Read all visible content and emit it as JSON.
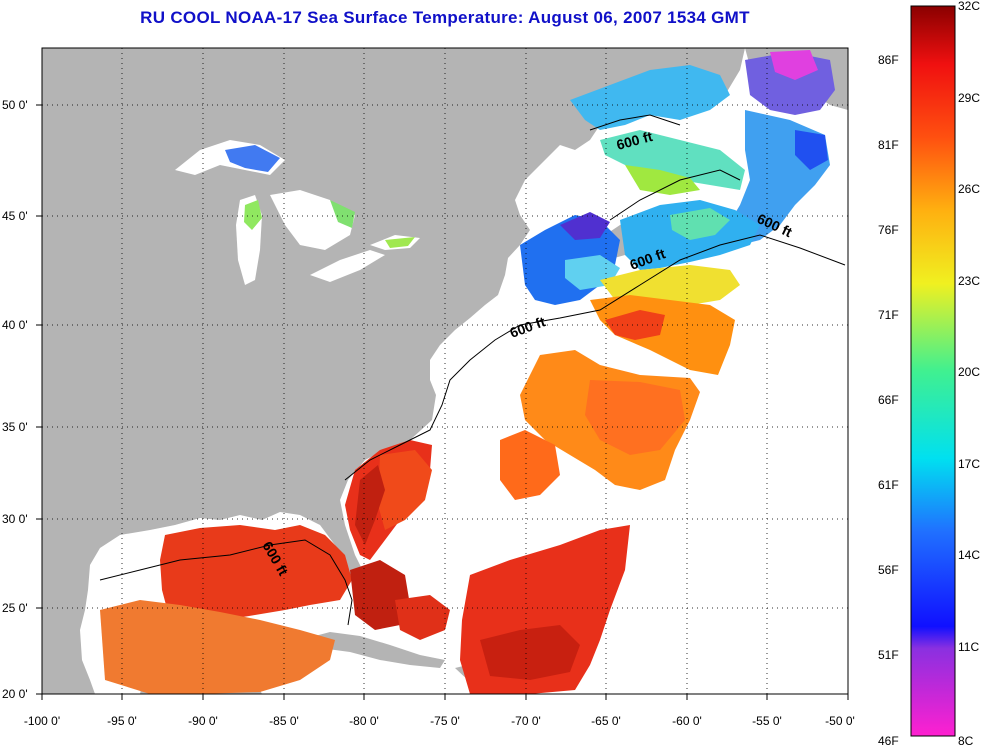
{
  "title": "RU COOL  NOAA-17  Sea Surface Temperature:  August 06, 2007 1534 GMT",
  "axes": {
    "lon_labels": [
      "-100 0'",
      "-95 0'",
      "-90 0'",
      "-85 0'",
      "-80 0'",
      "-75 0'",
      "-70 0'",
      "-65 0'",
      "-60 0'",
      "-55 0'",
      "-50 0'"
    ],
    "lat_labels": [
      "50 0'",
      "45 0'",
      "40 0'",
      "35 0'",
      "30 0'",
      "25 0'",
      "20 0'"
    ]
  },
  "contour_labels": [
    "600 ft",
    "600 ft",
    "600 ft",
    "600 ft",
    "600 ft"
  ],
  "colorbar": {
    "celsius_labels": [
      "32C",
      "29C",
      "26C",
      "23C",
      "20C",
      "17C",
      "14C",
      "11C",
      "8C"
    ],
    "fahrenheit_labels": [
      "86F",
      "81F",
      "76F",
      "71F",
      "66F",
      "61F",
      "56F",
      "51F",
      "46F"
    ]
  },
  "colors": {
    "land": "#b4b4b4",
    "ocean_nodata": "#ffffff",
    "title": "#1010c8",
    "warm_gulf": "#e83a1a",
    "shelf_cold": "#30b0f0"
  }
}
